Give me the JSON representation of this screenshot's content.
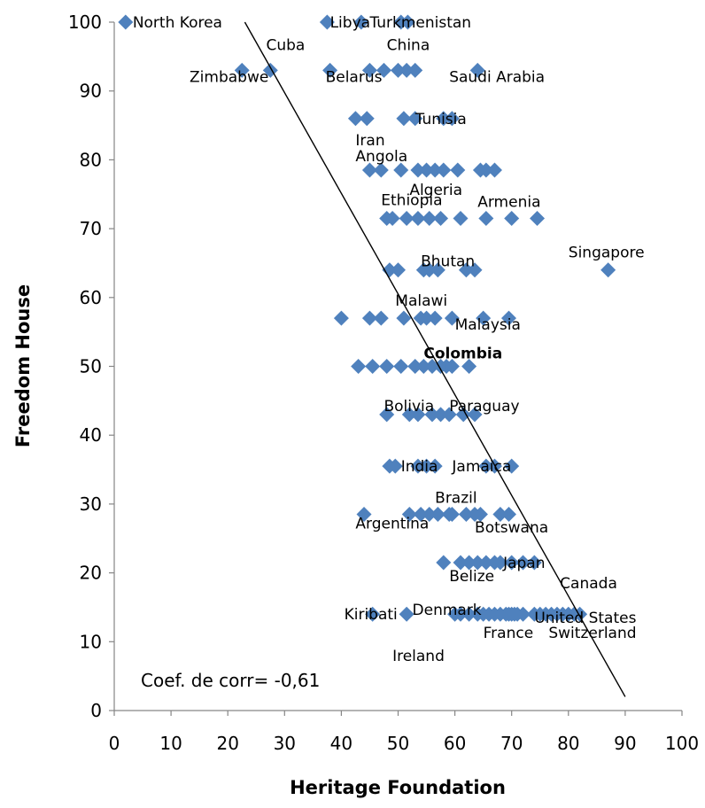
{
  "chart_data": {
    "type": "scatter",
    "xlabel": "Heritage Foundation",
    "ylabel": "Freedom House",
    "xlim": [
      0,
      100
    ],
    "ylim": [
      0,
      100
    ],
    "xticks": [
      "0",
      "10",
      "20",
      "30",
      "40",
      "50",
      "60",
      "70",
      "80",
      "90",
      "100"
    ],
    "yticks": [
      "0",
      "10",
      "20",
      "30",
      "40",
      "50",
      "60",
      "70",
      "80",
      "90",
      "100"
    ],
    "grid": false,
    "legend": "none",
    "marker_color": "#4F81BD",
    "trendline": {
      "x": [
        23,
        90
      ],
      "y": [
        100,
        2
      ]
    },
    "annotation": "Coef. de corr= -0,61",
    "points": [
      [
        2,
        100
      ],
      [
        37.5,
        100
      ],
      [
        43.5,
        100
      ],
      [
        50.5,
        100
      ],
      [
        51.7,
        100
      ],
      [
        22.5,
        93
      ],
      [
        27.5,
        93
      ],
      [
        38,
        93
      ],
      [
        45,
        93
      ],
      [
        47.5,
        93
      ],
      [
        50,
        93
      ],
      [
        51.5,
        93
      ],
      [
        53,
        93
      ],
      [
        64,
        93
      ],
      [
        42.5,
        86
      ],
      [
        44.5,
        86
      ],
      [
        51,
        86
      ],
      [
        53,
        86
      ],
      [
        58,
        86
      ],
      [
        59.5,
        86
      ],
      [
        45,
        78.5
      ],
      [
        47,
        78.5
      ],
      [
        50.5,
        78.5
      ],
      [
        53.5,
        78.5
      ],
      [
        55,
        78.5
      ],
      [
        56.5,
        78.5
      ],
      [
        58,
        78.5
      ],
      [
        60.5,
        78.5
      ],
      [
        64.5,
        78.5
      ],
      [
        65.5,
        78.5
      ],
      [
        67,
        78.5
      ],
      [
        48,
        71.5
      ],
      [
        49,
        71.5
      ],
      [
        51.5,
        71.5
      ],
      [
        53.5,
        71.5
      ],
      [
        55.5,
        71.5
      ],
      [
        57.5,
        71.5
      ],
      [
        61,
        71.5
      ],
      [
        65.5,
        71.5
      ],
      [
        70,
        71.5
      ],
      [
        74.5,
        71.5
      ],
      [
        48.5,
        64
      ],
      [
        50,
        64
      ],
      [
        54.5,
        64
      ],
      [
        55.5,
        64
      ],
      [
        57,
        64
      ],
      [
        62,
        64
      ],
      [
        63.5,
        64
      ],
      [
        87,
        64
      ],
      [
        40,
        57
      ],
      [
        45,
        57
      ],
      [
        47,
        57
      ],
      [
        51,
        57
      ],
      [
        54,
        57
      ],
      [
        55,
        57
      ],
      [
        56.5,
        57
      ],
      [
        59.5,
        57
      ],
      [
        65,
        57
      ],
      [
        69.5,
        57
      ],
      [
        43,
        50
      ],
      [
        45.5,
        50
      ],
      [
        48,
        50
      ],
      [
        50.5,
        50
      ],
      [
        53,
        50
      ],
      [
        54.5,
        50
      ],
      [
        56,
        50
      ],
      [
        57.5,
        50
      ],
      [
        58.5,
        50
      ],
      [
        59.5,
        50
      ],
      [
        62.5,
        50
      ],
      [
        48,
        43
      ],
      [
        52,
        43
      ],
      [
        53.5,
        43
      ],
      [
        56,
        43
      ],
      [
        57.5,
        43
      ],
      [
        59,
        43
      ],
      [
        61.5,
        43
      ],
      [
        63.5,
        43
      ],
      [
        48.5,
        35.5
      ],
      [
        49.5,
        35.5
      ],
      [
        53.5,
        35.5
      ],
      [
        55,
        35.5
      ],
      [
        56.5,
        35.5
      ],
      [
        65.5,
        35.5
      ],
      [
        67,
        35.5
      ],
      [
        70,
        35.5
      ],
      [
        44,
        28.5
      ],
      [
        52,
        28.5
      ],
      [
        54,
        28.5
      ],
      [
        55.5,
        28.5
      ],
      [
        57,
        28.5
      ],
      [
        59,
        28.5
      ],
      [
        59.5,
        28.5
      ],
      [
        62,
        28.5
      ],
      [
        63.5,
        28.5
      ],
      [
        64.5,
        28.5
      ],
      [
        68,
        28.5
      ],
      [
        69.5,
        28.5
      ],
      [
        58,
        21.5
      ],
      [
        61,
        21.5
      ],
      [
        62.5,
        21.5
      ],
      [
        64,
        21.5
      ],
      [
        65.5,
        21.5
      ],
      [
        67,
        21.5
      ],
      [
        68,
        21.5
      ],
      [
        70,
        21.5
      ],
      [
        72,
        21.5
      ],
      [
        74,
        21.5
      ],
      [
        45.5,
        14
      ],
      [
        51.5,
        14
      ],
      [
        60,
        14
      ],
      [
        61,
        14
      ],
      [
        62.5,
        14
      ],
      [
        64,
        14
      ],
      [
        65,
        14
      ],
      [
        66,
        14
      ],
      [
        67,
        14
      ],
      [
        68,
        14
      ],
      [
        69,
        14
      ],
      [
        69.5,
        14
      ],
      [
        70,
        14
      ],
      [
        70.5,
        14
      ],
      [
        71,
        14
      ],
      [
        72,
        14
      ],
      [
        74,
        14
      ],
      [
        75,
        14
      ],
      [
        76,
        14
      ],
      [
        77,
        14
      ],
      [
        78,
        14
      ],
      [
        79,
        14
      ],
      [
        80,
        14
      ],
      [
        81,
        14
      ],
      [
        82,
        14
      ]
    ],
    "labels": [
      {
        "text": "North Korea",
        "x": 2,
        "y": 100,
        "anchor": "start",
        "dx": 8,
        "dy": 6
      },
      {
        "text": "Libya",
        "x": 38,
        "y": 100,
        "anchor": "start",
        "dx": 0,
        "dy": 6
      },
      {
        "text": "Turkmenistan",
        "x": 45,
        "y": 100,
        "anchor": "start",
        "dx": 0,
        "dy": 6
      },
      {
        "text": "Cuba",
        "x": 28,
        "y": 93,
        "anchor": "start",
        "dx": -8,
        "dy": -23
      },
      {
        "text": "Zimbabwe",
        "x": 22,
        "y": 93,
        "anchor": "start",
        "dx": -56,
        "dy": 13
      },
      {
        "text": "China",
        "x": 48,
        "y": 93,
        "anchor": "start",
        "dx": 0,
        "dy": -23
      },
      {
        "text": "Belarus",
        "x": 38,
        "y": 93,
        "anchor": "start",
        "dx": -5,
        "dy": 13
      },
      {
        "text": "Saudi Arabia",
        "x": 59,
        "y": 93,
        "anchor": "start",
        "dx": 0,
        "dy": 13
      },
      {
        "text": "Tunisia",
        "x": 53,
        "y": 86,
        "anchor": "start",
        "dx": 0,
        "dy": 6
      },
      {
        "text": "Iran",
        "x": 42.5,
        "y": 86,
        "anchor": "start",
        "dx": 0,
        "dy": 30
      },
      {
        "text": "Angola",
        "x": 42.5,
        "y": 78.5,
        "anchor": "start",
        "dx": 0,
        "dy": -10
      },
      {
        "text": "Algeria",
        "x": 52,
        "y": 78.5,
        "anchor": "start",
        "dx": 0,
        "dy": 28
      },
      {
        "text": "Ethiopia",
        "x": 47,
        "y": 71.5,
        "anchor": "start",
        "dx": 0,
        "dy": -15
      },
      {
        "text": "Armenia",
        "x": 64,
        "y": 71.5,
        "anchor": "start",
        "dx": 0,
        "dy": -13
      },
      {
        "text": "Singapore",
        "x": 80,
        "y": 64,
        "anchor": "start",
        "dx": 0,
        "dy": -14
      },
      {
        "text": "Bhutan",
        "x": 54,
        "y": 64,
        "anchor": "start",
        "dx": 0,
        "dy": -4
      },
      {
        "text": "Malawi",
        "x": 49.5,
        "y": 57,
        "anchor": "start",
        "dx": 0,
        "dy": -14
      },
      {
        "text": "Malaysia",
        "x": 60,
        "y": 57,
        "anchor": "start",
        "dx": 0,
        "dy": 13
      },
      {
        "text": "Colombia",
        "x": 54.5,
        "y": 50,
        "anchor": "start",
        "dx": 0,
        "dy": -9,
        "bold": true
      },
      {
        "text": "Bolivia",
        "x": 47.5,
        "y": 43,
        "anchor": "start",
        "dx": 0,
        "dy": -4
      },
      {
        "text": "Paraguay",
        "x": 59,
        "y": 43,
        "anchor": "start",
        "dx": 0,
        "dy": -4
      },
      {
        "text": "India",
        "x": 50.5,
        "y": 35.5,
        "anchor": "start",
        "dx": 0,
        "dy": 6
      },
      {
        "text": "Jamaica",
        "x": 59.5,
        "y": 35.5,
        "anchor": "start",
        "dx": 0,
        "dy": 6
      },
      {
        "text": "Brazil",
        "x": 56.5,
        "y": 28.5,
        "anchor": "start",
        "dx": 0,
        "dy": -13
      },
      {
        "text": "Argentina",
        "x": 42.5,
        "y": 28.5,
        "anchor": "start",
        "dx": 0,
        "dy": 16
      },
      {
        "text": "Botswana",
        "x": 63.5,
        "y": 21.5,
        "anchor": "start",
        "dx": 0,
        "dy": -34
      },
      {
        "text": "Japan",
        "x": 68.5,
        "y": 21.5,
        "anchor": "start",
        "dx": 0,
        "dy": 6
      },
      {
        "text": "Belize",
        "x": 59,
        "y": 21.5,
        "anchor": "start",
        "dx": 0,
        "dy": 21
      },
      {
        "text": "Canada",
        "x": 78.5,
        "y": 14,
        "anchor": "start",
        "dx": 0,
        "dy": -29
      },
      {
        "text": "Kiribati",
        "x": 40.5,
        "y": 14,
        "anchor": "start",
        "dx": 0,
        "dy": 6
      },
      {
        "text": "Denmark",
        "x": 52.5,
        "y": 14,
        "anchor": "start",
        "dx": 0,
        "dy": 1
      },
      {
        "text": "United States",
        "x": 74,
        "y": 14,
        "anchor": "start",
        "dx": 0,
        "dy": 10
      },
      {
        "text": "France",
        "x": 65,
        "y": 14,
        "anchor": "start",
        "dx": 0,
        "dy": 27
      },
      {
        "text": "Switzerland",
        "x": 76.5,
        "y": 14,
        "anchor": "start",
        "dx": 0,
        "dy": 27
      },
      {
        "text": "Ireland",
        "x": 49,
        "y": 8,
        "anchor": "start",
        "dx": 0,
        "dy": 6
      }
    ]
  }
}
